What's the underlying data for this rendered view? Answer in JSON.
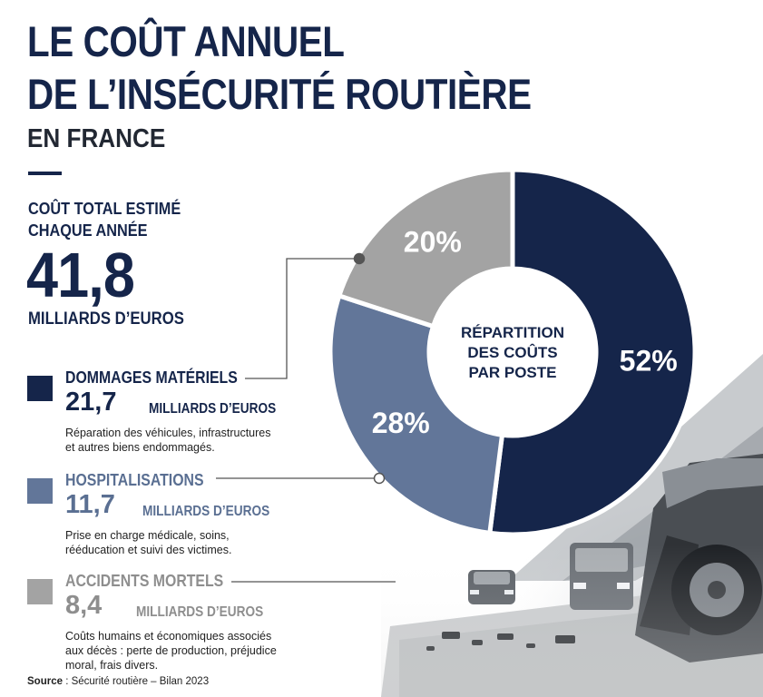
{
  "title_line1": "LE COÛT ANNUEL",
  "title_line2": "DE L’INSÉCURITÉ ROUTIÈRE",
  "subtitle": "EN FRANCE",
  "total": {
    "label_line1": "COÛT TOTAL ESTIMÉ",
    "label_line2": "CHAQUE ANNÉE",
    "value": "41,8",
    "unit": "MILLIARDS D’EUROS"
  },
  "categories": [
    {
      "title": "DOMMAGES MATÉRIELS",
      "value": "21,7",
      "unit": "MILLIARDS D’EUROS",
      "desc": "Réparation des véhicules, infrastructures et autres biens endommagés.",
      "color": "#15254a"
    },
    {
      "title": "HOSPITALISATIONS",
      "value": "11,7",
      "unit": "MILLIARDS D’EUROS",
      "desc": "Prise en charge médicale, soins, rééducation et suivi des victimes.",
      "color": "#627699"
    },
    {
      "title": "ACCIDENTS MORTELS",
      "value": "8,4",
      "unit": "MILLIARDS D’EUROS",
      "desc": "Coûts humains et économiques associés aux décès : perte de production, préjudice moral, frais divers.",
      "color": "#a3a3a3"
    }
  ],
  "chart_data": {
    "type": "pie",
    "center_label_lines": [
      "RÉPARTITION",
      "DES COÛTS",
      "PAR POSTE"
    ],
    "slices": [
      {
        "label": "DOMMAGES MATÉRIELS",
        "value": 52,
        "display": "52%",
        "color": "#15254a"
      },
      {
        "label": "HOSPITALISATIONS",
        "value": 28,
        "display": "28%",
        "color": "#627699"
      },
      {
        "label": "ACCIDENTS MORTELS",
        "value": 20,
        "display": "20%",
        "color": "#a3a3a3"
      }
    ]
  },
  "source": {
    "label": "Source",
    "text": " : Sécurité routière – Bilan 2023"
  }
}
